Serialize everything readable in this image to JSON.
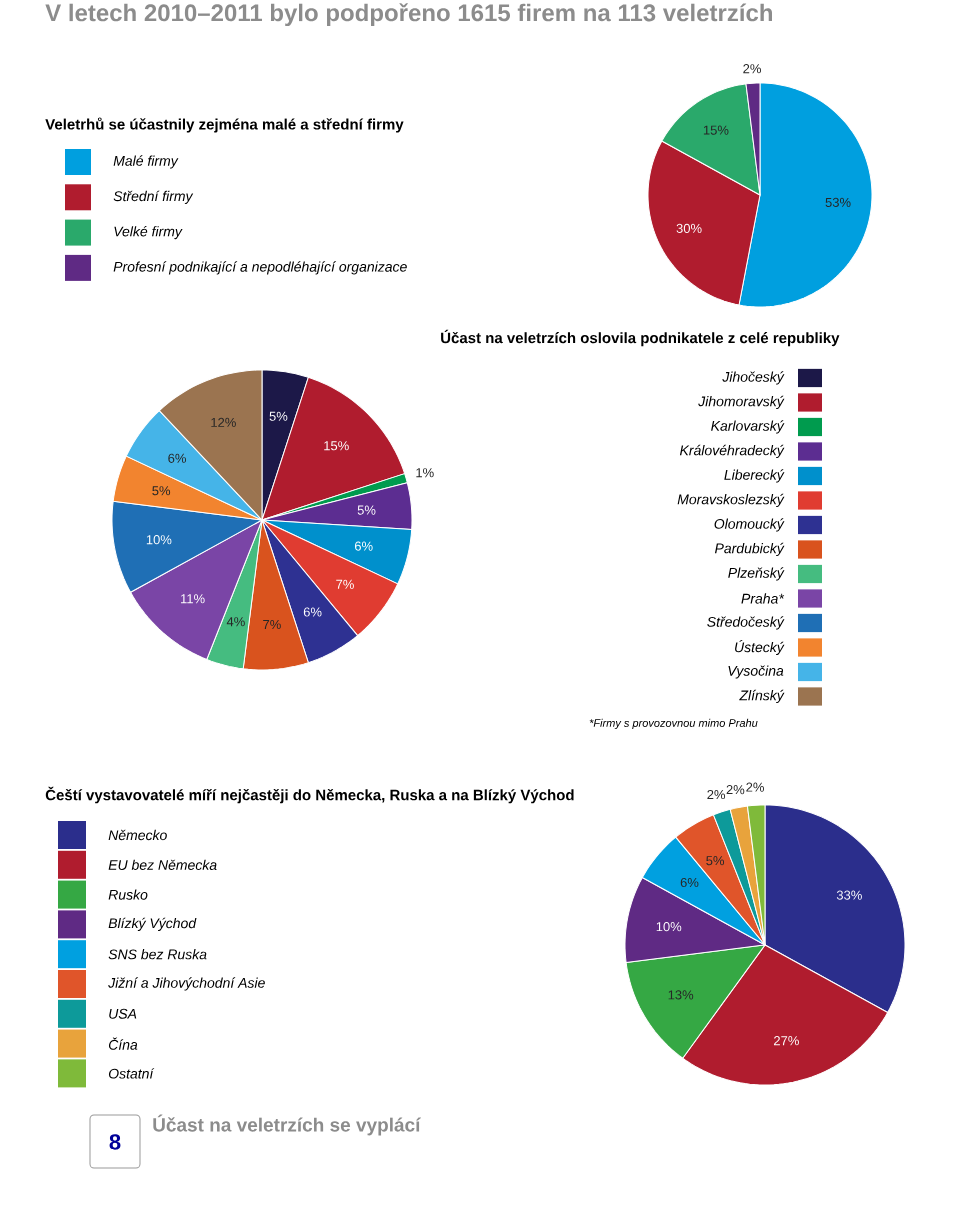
{
  "chart_data": [
    {
      "type": "pie",
      "title": "V letech 2010–2011 bylo podpořeno 1615 firem na 113 veletrzích",
      "subtitle": "Veletrhů se účastnily zejména malé a střední firmy",
      "categories": [
        "Malé firmy",
        "Střední firmy",
        "Velké firmy",
        "Profesní podnikající a nepodléhající organizace"
      ],
      "values": [
        53,
        30,
        15,
        2
      ],
      "value_labels": [
        "53%",
        "30%",
        "15%",
        "2%"
      ],
      "colors": [
        "#009fdf",
        "#b01c2e",
        "#2aa96b",
        "#5f2a84"
      ],
      "legend": "left"
    },
    {
      "type": "pie",
      "title": "Účast na veletrzích oslovila podnikatele z celé republiky",
      "categories": [
        "Jihočeský",
        "Jihomoravský",
        "Karlovarský",
        "Královéhradecký",
        "Liberecký",
        "Moravskoslezský",
        "Olomoucký",
        "Pardubický",
        "Plzeňský",
        "Praha*",
        "Středočeský",
        "Ústecký",
        "Vysočina",
        "Zlínský"
      ],
      "values": [
        5,
        15,
        1,
        5,
        6,
        7,
        6,
        7,
        4,
        11,
        10,
        5,
        6,
        12
      ],
      "value_labels": [
        "5%",
        "15%",
        "1%",
        "5%",
        "6%",
        "7%",
        "6%",
        "7%",
        "4%",
        "11%",
        "10%",
        "5%",
        "6%",
        "12%"
      ],
      "colors": [
        "#1c1848",
        "#b01c2e",
        "#009b4e",
        "#5c2d91",
        "#0090cc",
        "#e03c31",
        "#2e3192",
        "#d9531e",
        "#45bc80",
        "#7a45a6",
        "#1f6fb5",
        "#f2842f",
        "#45b4e8",
        "#9b7450"
      ],
      "legend": "right",
      "annotations": [
        "*Firmy s provozovnou mimo Prahu"
      ]
    },
    {
      "type": "pie",
      "title": "Čeští vystavovatelé míří nejčastěji do Německa, Ruska a na Blízký Východ",
      "categories": [
        "Německo",
        "EU bez Německa",
        "Rusko",
        "Blízký Východ",
        "SNS bez Ruska",
        "Jižní a Jihovýchodní Asie",
        "USA",
        "Čína",
        "Ostatní"
      ],
      "values": [
        33,
        27,
        13,
        10,
        6,
        5,
        2,
        2,
        2
      ],
      "value_labels": [
        "33%",
        "27%",
        "13%",
        "10%",
        "6%",
        "5%",
        "2%",
        "2%",
        "2%"
      ],
      "colors": [
        "#2b2e8c",
        "#b01c2e",
        "#35a844",
        "#5f2a84",
        "#00a0e0",
        "#e0552a",
        "#0d9a9a",
        "#e8a33c",
        "#7fba3a"
      ],
      "legend": "left",
      "annotations": [
        "8",
        "Účast na veletrzích se vyplácí"
      ]
    }
  ]
}
